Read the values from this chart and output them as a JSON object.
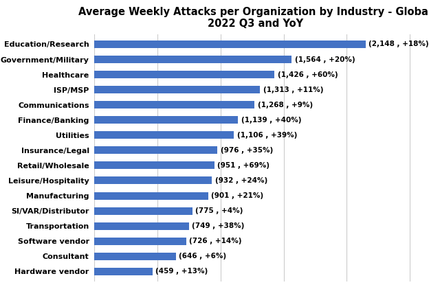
{
  "title_line1": "Average Weekly Attacks per Organization by Industry - Global",
  "title_line2": "2022 Q3 and YoY",
  "categories": [
    "Hardware vendor",
    "Consultant",
    "Software vendor",
    "Transportation",
    "SI/VAR/Distributor",
    "Manufacturing",
    "Leisure/Hospitality",
    "Retail/Wholesale",
    "Insurance/Legal",
    "Utilities",
    "Finance/Banking",
    "Communications",
    "ISP/MSP",
    "Healthcare",
    "Government/Military",
    "Education/Research"
  ],
  "values": [
    459,
    646,
    726,
    749,
    775,
    901,
    932,
    951,
    976,
    1106,
    1139,
    1268,
    1313,
    1426,
    1564,
    2148
  ],
  "labels": [
    "(459 , +13%)",
    "(646 , +6%)",
    "(726 , +14%)",
    "(749 , +38%)",
    "(775 , +4%)",
    "(901 , +21%)",
    "(932 , +24%)",
    "(951 , +69%)",
    "(976 , +35%)",
    "(1,106 , +39%)",
    "(1,139 , +40%)",
    "(1,268 , +9%)",
    "(1,313 , +11%)",
    "(1,426 , +60%)",
    "(1,564 , +20%)",
    "(2,148 , +18%)"
  ],
  "bar_color": "#4472C4",
  "background_color": "#ffffff",
  "xlim": [
    0,
    2550
  ],
  "grid_color": "#cccccc",
  "label_fontsize": 7.5,
  "category_fontsize": 8,
  "title_fontsize": 10.5,
  "bar_height": 0.5
}
